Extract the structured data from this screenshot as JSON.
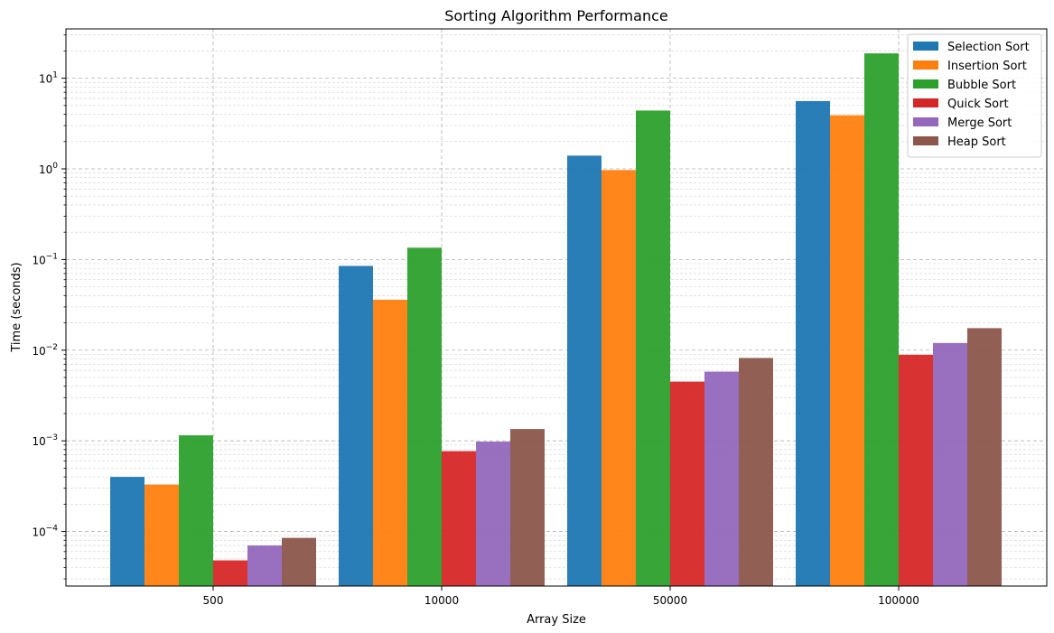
{
  "chart_data": {
    "type": "bar",
    "title": "Sorting Algorithm Performance",
    "xlabel": "Array Size",
    "ylabel": "Time (seconds)",
    "yscale": "log",
    "ylim": [
      2.5e-05,
      35
    ],
    "y_ticks": [
      {
        "value": 0.0001,
        "base": "10",
        "exp": "−4"
      },
      {
        "value": 0.001,
        "base": "10",
        "exp": "−3"
      },
      {
        "value": 0.01,
        "base": "10",
        "exp": "−2"
      },
      {
        "value": 0.1,
        "base": "10",
        "exp": "−1"
      },
      {
        "value": 1,
        "base": "10",
        "exp": "0"
      },
      {
        "value": 10,
        "base": "10",
        "exp": "1"
      }
    ],
    "grid": true,
    "legend_position": "top-right",
    "categories": [
      "500",
      "10000",
      "50000",
      "100000"
    ],
    "series": [
      {
        "name": "Selection Sort",
        "color": "#1f77b4",
        "values": [
          0.0004,
          0.085,
          1.4,
          5.6
        ]
      },
      {
        "name": "Insertion Sort",
        "color": "#ff7f0e",
        "values": [
          0.00033,
          0.036,
          0.97,
          3.9
        ]
      },
      {
        "name": "Bubble Sort",
        "color": "#2ca02c",
        "values": [
          0.00115,
          0.135,
          4.4,
          18.8
        ]
      },
      {
        "name": "Quick Sort",
        "color": "#d62728",
        "values": [
          4.8e-05,
          0.00077,
          0.0045,
          0.0089
        ]
      },
      {
        "name": "Merge Sort",
        "color": "#9467bd",
        "values": [
          7e-05,
          0.00098,
          0.0058,
          0.012
        ]
      },
      {
        "name": "Heap Sort",
        "color": "#8c564b",
        "values": [
          8.5e-05,
          0.00135,
          0.0082,
          0.0175
        ]
      }
    ]
  }
}
